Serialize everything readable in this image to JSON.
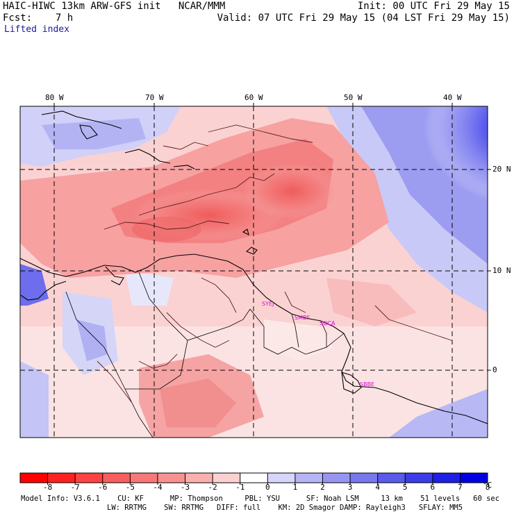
{
  "header": {
    "title": "HAIC-HIWC 13km ARW-GFS init   NCAR/MMM",
    "init": "Init: 00 UTC Fri 29 May 15",
    "fcst": "Fcst:    7 h",
    "valid": "Valid: 07 UTC Fri 29 May 15 (04 LST Fri 29 May 15)",
    "field": "Lifted index"
  },
  "map": {
    "lon_labels": [
      "80 W",
      "70 W",
      "60 W",
      "50 W",
      "40 W"
    ],
    "lat_labels": [
      "20 N",
      "10 N",
      "0"
    ],
    "stations": [
      "SYEJ",
      "SMBF",
      "SOCA",
      "SBBE"
    ],
    "station_color": "#e000e0"
  },
  "colorbar": {
    "tick_labels": [
      "-8",
      "-7",
      "-6",
      "-5",
      "-4",
      "-3",
      "-2",
      "-1",
      "0",
      "1",
      "2",
      "3",
      "4",
      "5",
      "6",
      "7",
      "8"
    ],
    "unit": "°C",
    "colors": [
      "#ff0000",
      "#ff2020",
      "#ff4242",
      "#f85e5e",
      "#f87878",
      "#f89292",
      "#fbb0b0",
      "#fcd0d0",
      "#ffffff",
      "#d6d6fa",
      "#b4b4f6",
      "#9696f2",
      "#7878ee",
      "#5a5aeb",
      "#3c3ce8",
      "#1e1ee6",
      "#0000e4"
    ]
  },
  "footer": {
    "line1": "Model Info: V3.6.1    CU: KF      MP: Thompson     PBL: YSU      SF: Noah LSM     13 km    51 levels   60 sec",
    "line2": "LW: RRTMG    SW: RRTMG   DIFF: full    KM: 2D Smagor DAMP: Rayleigh3   SFLAY: MM5"
  }
}
